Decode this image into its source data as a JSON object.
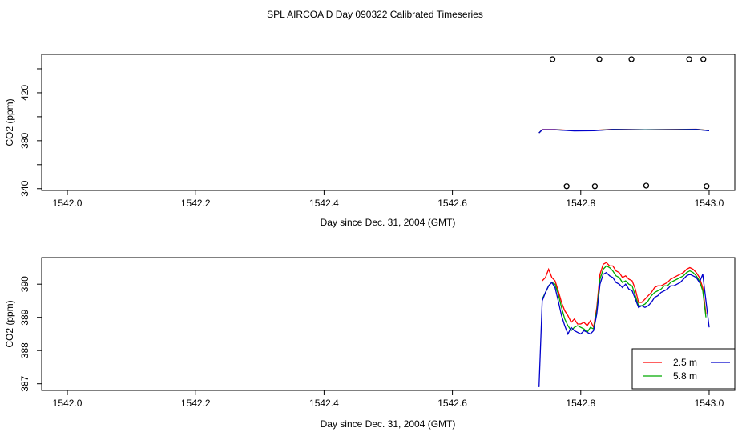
{
  "title": "SPL AIRCOA D  Day 090322  Calibrated Timeseries",
  "chart_data": [
    {
      "type": "scatter",
      "xlabel": "Day since Dec. 31, 2004 (GMT)",
      "ylabel": "CO2 (ppm)",
      "xlim": [
        1541.96,
        1543.04
      ],
      "ylim": [
        338.5,
        452
      ],
      "xticks": [
        1542.0,
        1542.2,
        1542.4,
        1542.6,
        1542.8,
        1543.0
      ],
      "xtick_labels": [
        "1542.0",
        "1542.2",
        "1542.4",
        "1542.6",
        "1542.8",
        "1543.0"
      ],
      "yticks": [
        340,
        360,
        380,
        400,
        420,
        440
      ],
      "ytick_labels": {
        "340": "340",
        "380": "380",
        "420": "420"
      },
      "grid": false,
      "points": [
        {
          "x": 1542.756,
          "y": 448
        },
        {
          "x": 1542.829,
          "y": 448
        },
        {
          "x": 1542.879,
          "y": 448
        },
        {
          "x": 1542.969,
          "y": 448
        },
        {
          "x": 1542.991,
          "y": 448
        },
        {
          "x": 1542.778,
          "y": 342
        },
        {
          "x": 1542.822,
          "y": 342
        },
        {
          "x": 1542.902,
          "y": 342.5
        },
        {
          "x": 1542.996,
          "y": 342
        }
      ],
      "series": [
        {
          "color": "#ff0000",
          "x": [
            1542.735,
            1542.74,
            1542.76,
            1542.79,
            1542.82,
            1542.85,
            1542.9,
            1542.95,
            1542.98,
            1543.0
          ],
          "y": [
            386.5,
            389.3,
            389.3,
            388.4,
            388.6,
            389.5,
            389.2,
            389.4,
            389.6,
            388.5
          ]
        },
        {
          "color": "#00aa00",
          "x": [
            1542.735,
            1542.74,
            1542.76,
            1542.79,
            1542.82,
            1542.85,
            1542.9,
            1542.95,
            1542.98,
            1543.0
          ],
          "y": [
            386.5,
            389.2,
            389.2,
            388.3,
            388.5,
            389.4,
            389.1,
            389.3,
            389.5,
            388.4
          ]
        },
        {
          "color": "#0000cc",
          "x": [
            1542.735,
            1542.74,
            1542.76,
            1542.79,
            1542.82,
            1542.85,
            1542.9,
            1542.95,
            1542.98,
            1543.0
          ],
          "y": [
            386.5,
            389.1,
            389.1,
            388.2,
            388.4,
            389.3,
            389.0,
            389.2,
            389.4,
            388.3
          ]
        }
      ]
    },
    {
      "type": "line",
      "xlabel": "Day since Dec. 31, 2004 (GMT)",
      "ylabel": "CO2 (ppm)",
      "xlim": [
        1541.96,
        1543.04
      ],
      "ylim": [
        386.8,
        390.8
      ],
      "xticks": [
        1542.0,
        1542.2,
        1542.4,
        1542.6,
        1542.8,
        1543.0
      ],
      "xtick_labels": [
        "1542.0",
        "1542.2",
        "1542.4",
        "1542.6",
        "1542.8",
        "1543.0"
      ],
      "yticks": [
        387,
        388,
        389,
        390
      ],
      "ytick_labels": {
        "387": "387",
        "388": "388",
        "389": "389",
        "390": "390"
      },
      "grid": false,
      "legend": {
        "placement": "bottom-right",
        "entries": [
          {
            "label": "2.5 m",
            "color": "#ff0000"
          },
          {
            "label": "5.8 m",
            "color": "#00aa00"
          },
          {
            "label": "",
            "color": "#0000cc"
          }
        ]
      },
      "series": [
        {
          "name": "2.5 m",
          "color": "#ff0000",
          "x": [
            1542.74,
            1542.745,
            1542.75,
            1542.755,
            1542.76,
            1542.765,
            1542.77,
            1542.775,
            1542.78,
            1542.785,
            1542.79,
            1542.795,
            1542.8,
            1542.805,
            1542.81,
            1542.815,
            1542.82,
            1542.825,
            1542.83,
            1542.835,
            1542.84,
            1542.845,
            1542.85,
            1542.855,
            1542.86,
            1542.865,
            1542.87,
            1542.875,
            1542.88,
            1542.885,
            1542.89,
            1542.895,
            1542.9,
            1542.905,
            1542.91,
            1542.915,
            1542.92,
            1542.925,
            1542.93,
            1542.935,
            1542.94,
            1542.945,
            1542.95,
            1542.955,
            1542.96,
            1542.965,
            1542.97,
            1542.975,
            1542.98,
            1542.985,
            1542.99,
            1542.995
          ],
          "y": [
            390.1,
            390.2,
            390.45,
            390.2,
            390.1,
            389.8,
            389.45,
            389.2,
            389.05,
            388.85,
            388.95,
            388.8,
            388.8,
            388.85,
            388.75,
            388.9,
            388.7,
            389.3,
            390.3,
            390.6,
            390.65,
            390.55,
            390.55,
            390.4,
            390.35,
            390.2,
            390.25,
            390.15,
            390.1,
            389.85,
            389.45,
            389.45,
            389.55,
            389.65,
            389.75,
            389.9,
            389.95,
            389.95,
            390.0,
            390.05,
            390.15,
            390.2,
            390.25,
            390.3,
            390.35,
            390.45,
            390.5,
            390.45,
            390.35,
            390.2,
            389.9,
            389.1
          ]
        },
        {
          "name": "5.8 m",
          "color": "#00aa00",
          "x": [
            1542.74,
            1542.745,
            1542.75,
            1542.755,
            1542.76,
            1542.765,
            1542.77,
            1542.775,
            1542.78,
            1542.785,
            1542.79,
            1542.795,
            1542.8,
            1542.805,
            1542.81,
            1542.815,
            1542.82,
            1542.825,
            1542.83,
            1542.835,
            1542.84,
            1542.845,
            1542.85,
            1542.855,
            1542.86,
            1542.865,
            1542.87,
            1542.875,
            1542.88,
            1542.885,
            1542.89,
            1542.895,
            1542.9,
            1542.905,
            1542.91,
            1542.915,
            1542.92,
            1542.925,
            1542.93,
            1542.935,
            1542.94,
            1542.945,
            1542.95,
            1542.955,
            1542.96,
            1542.965,
            1542.97,
            1542.975,
            1542.98,
            1542.985,
            1542.99,
            1542.995
          ],
          "y": [
            389.55,
            389.75,
            389.95,
            390.05,
            390.0,
            389.7,
            389.3,
            388.95,
            388.75,
            388.6,
            388.7,
            388.75,
            388.7,
            388.65,
            388.55,
            388.7,
            388.65,
            389.2,
            390.15,
            390.45,
            390.55,
            390.5,
            390.4,
            390.25,
            390.2,
            390.05,
            390.1,
            390.0,
            389.95,
            389.65,
            389.35,
            389.35,
            389.4,
            389.5,
            389.65,
            389.75,
            389.8,
            389.85,
            389.95,
            389.95,
            390.05,
            390.1,
            390.15,
            390.2,
            390.25,
            390.35,
            390.4,
            390.35,
            390.25,
            390.1,
            389.8,
            389.0
          ]
        },
        {
          "name": "",
          "color": "#0000cc",
          "x": [
            1542.735,
            1542.74,
            1542.745,
            1542.75,
            1542.755,
            1542.76,
            1542.765,
            1542.77,
            1542.775,
            1542.78,
            1542.785,
            1542.79,
            1542.795,
            1542.8,
            1542.805,
            1542.81,
            1542.815,
            1542.82,
            1542.825,
            1542.83,
            1542.835,
            1542.84,
            1542.845,
            1542.85,
            1542.855,
            1542.86,
            1542.865,
            1542.87,
            1542.875,
            1542.88,
            1542.885,
            1542.89,
            1542.895,
            1542.9,
            1542.905,
            1542.91,
            1542.915,
            1542.92,
            1542.925,
            1542.93,
            1542.935,
            1542.94,
            1542.945,
            1542.95,
            1542.955,
            1542.96,
            1542.965,
            1542.97,
            1542.975,
            1542.98,
            1542.985,
            1542.99,
            1542.995,
            1543.0
          ],
          "y": [
            386.9,
            389.5,
            389.75,
            389.95,
            390.05,
            389.9,
            389.5,
            389.05,
            388.75,
            388.5,
            388.7,
            388.6,
            388.55,
            388.5,
            388.6,
            388.55,
            388.5,
            388.6,
            389.1,
            390.0,
            390.3,
            390.35,
            390.25,
            390.2,
            390.05,
            390.0,
            389.9,
            390.0,
            389.85,
            389.8,
            389.55,
            389.3,
            389.35,
            389.3,
            389.35,
            389.45,
            389.6,
            389.65,
            389.75,
            389.8,
            389.85,
            389.95,
            389.95,
            390.0,
            390.05,
            390.15,
            390.25,
            390.3,
            390.25,
            390.2,
            390.05,
            390.3,
            389.5,
            388.7
          ]
        }
      ]
    }
  ]
}
